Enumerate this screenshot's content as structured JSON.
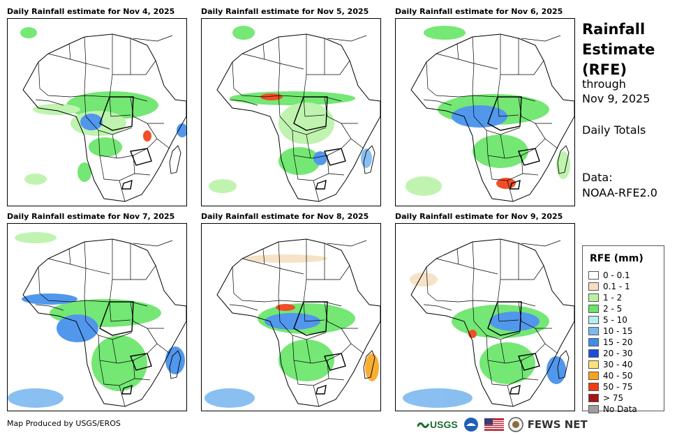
{
  "panels": [
    {
      "title": "Daily Rainfall estimate for Nov 4, 2025"
    },
    {
      "title": "Daily Rainfall estimate for Nov 5, 2025"
    },
    {
      "title": "Daily Rainfall estimate for Nov 6, 2025"
    },
    {
      "title": "Daily Rainfall estimate for Nov 7, 2025"
    },
    {
      "title": "Daily Rainfall estimate for Nov 8, 2025"
    },
    {
      "title": "Daily Rainfall estimate for Nov 9, 2025"
    }
  ],
  "sidebar": {
    "title_line1": "Rainfall",
    "title_line2": "Estimate",
    "title_line3": "(RFE)",
    "through_label": "through",
    "through_date": "Nov 9, 2025",
    "totals_label": "Daily Totals",
    "data_label": "Data:",
    "data_source": "NOAA-RFE2.0"
  },
  "legend": {
    "title": "RFE (mm)",
    "items": [
      {
        "label": "0 - 0.1",
        "color": "#ffffff"
      },
      {
        "label": "0.1 - 1",
        "color": "#f5dfc0"
      },
      {
        "label": "1 - 2",
        "color": "#b9f2a7"
      },
      {
        "label": "2 - 5",
        "color": "#66e566"
      },
      {
        "label": "5 - 10",
        "color": "#b8ecf4"
      },
      {
        "label": "10 - 15",
        "color": "#7db9ef"
      },
      {
        "label": "15 - 20",
        "color": "#3f8cea"
      },
      {
        "label": "20 - 30",
        "color": "#1b4fd6"
      },
      {
        "label": "30 - 40",
        "color": "#fbe27a"
      },
      {
        "label": "40 - 50",
        "color": "#f7a41d"
      },
      {
        "label": "50 - 75",
        "color": "#ef3c10"
      },
      {
        "label": "> 75",
        "color": "#a51515"
      },
      {
        "label": "No Data",
        "color": "#9e9e9e"
      }
    ]
  },
  "footer": {
    "credit": "Map Produced by USGS/EROS",
    "usgs_logo": "USGS",
    "fews_logo": "FEWS NET"
  }
}
